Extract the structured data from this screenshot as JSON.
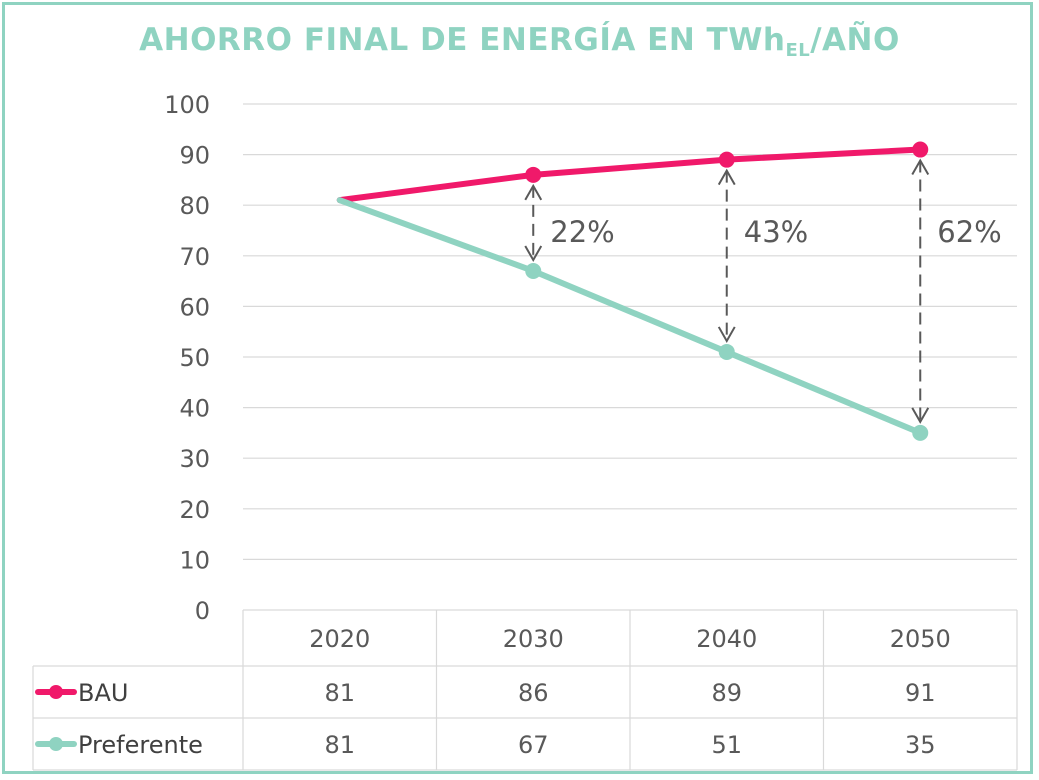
{
  "chart_data": {
    "type": "line",
    "title_main": "AHORRO FINAL DE ENERGÍA EN TWh",
    "title_sub": "EL",
    "title_suffix": "/AÑO",
    "categories": [
      "2020",
      "2030",
      "2040",
      "2050"
    ],
    "series": [
      {
        "name": "BAU",
        "values": [
          81,
          86,
          89,
          91
        ],
        "color": "#f0196a"
      },
      {
        "name": "Preferente",
        "values": [
          81,
          67,
          51,
          35
        ],
        "color": "#8fd3c1"
      }
    ],
    "ylim": [
      0,
      100
    ],
    "yticks": [
      "0",
      "10",
      "20",
      "30",
      "40",
      "50",
      "60",
      "70",
      "80",
      "90",
      "100"
    ],
    "annotations": [
      {
        "category": "2030",
        "text": "22%"
      },
      {
        "category": "2040",
        "text": "43%"
      },
      {
        "category": "2050",
        "text": "62%"
      }
    ],
    "grid": true,
    "data_table": true,
    "legend": "data-table"
  }
}
